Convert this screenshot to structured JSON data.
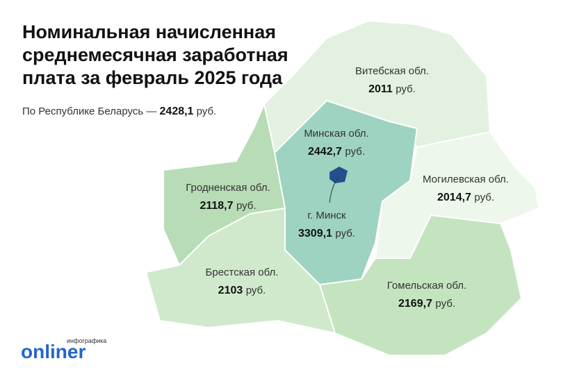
{
  "header": {
    "title_lines": [
      "Номинальная начисленная",
      "среднемесячная заработная",
      "плата за февраль 2025 года"
    ],
    "subtitle": {
      "text": "По Республике Беларусь —",
      "value": "2428,1",
      "unit": "руб."
    }
  },
  "regions": [
    {
      "name": "Витебская обл.",
      "value": "2011",
      "unit": "руб."
    },
    {
      "name": "Минская обл.",
      "value": "2442,7",
      "unit": "руб."
    },
    {
      "name": "Могилевская обл.",
      "value": "2014,7",
      "unit": "руб."
    },
    {
      "name": "Гродненская обл.",
      "value": "2118,7",
      "unit": "руб."
    },
    {
      "name": "г. Минск",
      "value": "3309,1",
      "unit": "руб."
    },
    {
      "name": "Брестская обл.",
      "value": "2103",
      "unit": "руб."
    },
    {
      "name": "Гомельская обл.",
      "value": "2169,7",
      "unit": "руб."
    }
  ],
  "logo": {
    "caption": "инфографика",
    "brand": "onliner"
  }
}
